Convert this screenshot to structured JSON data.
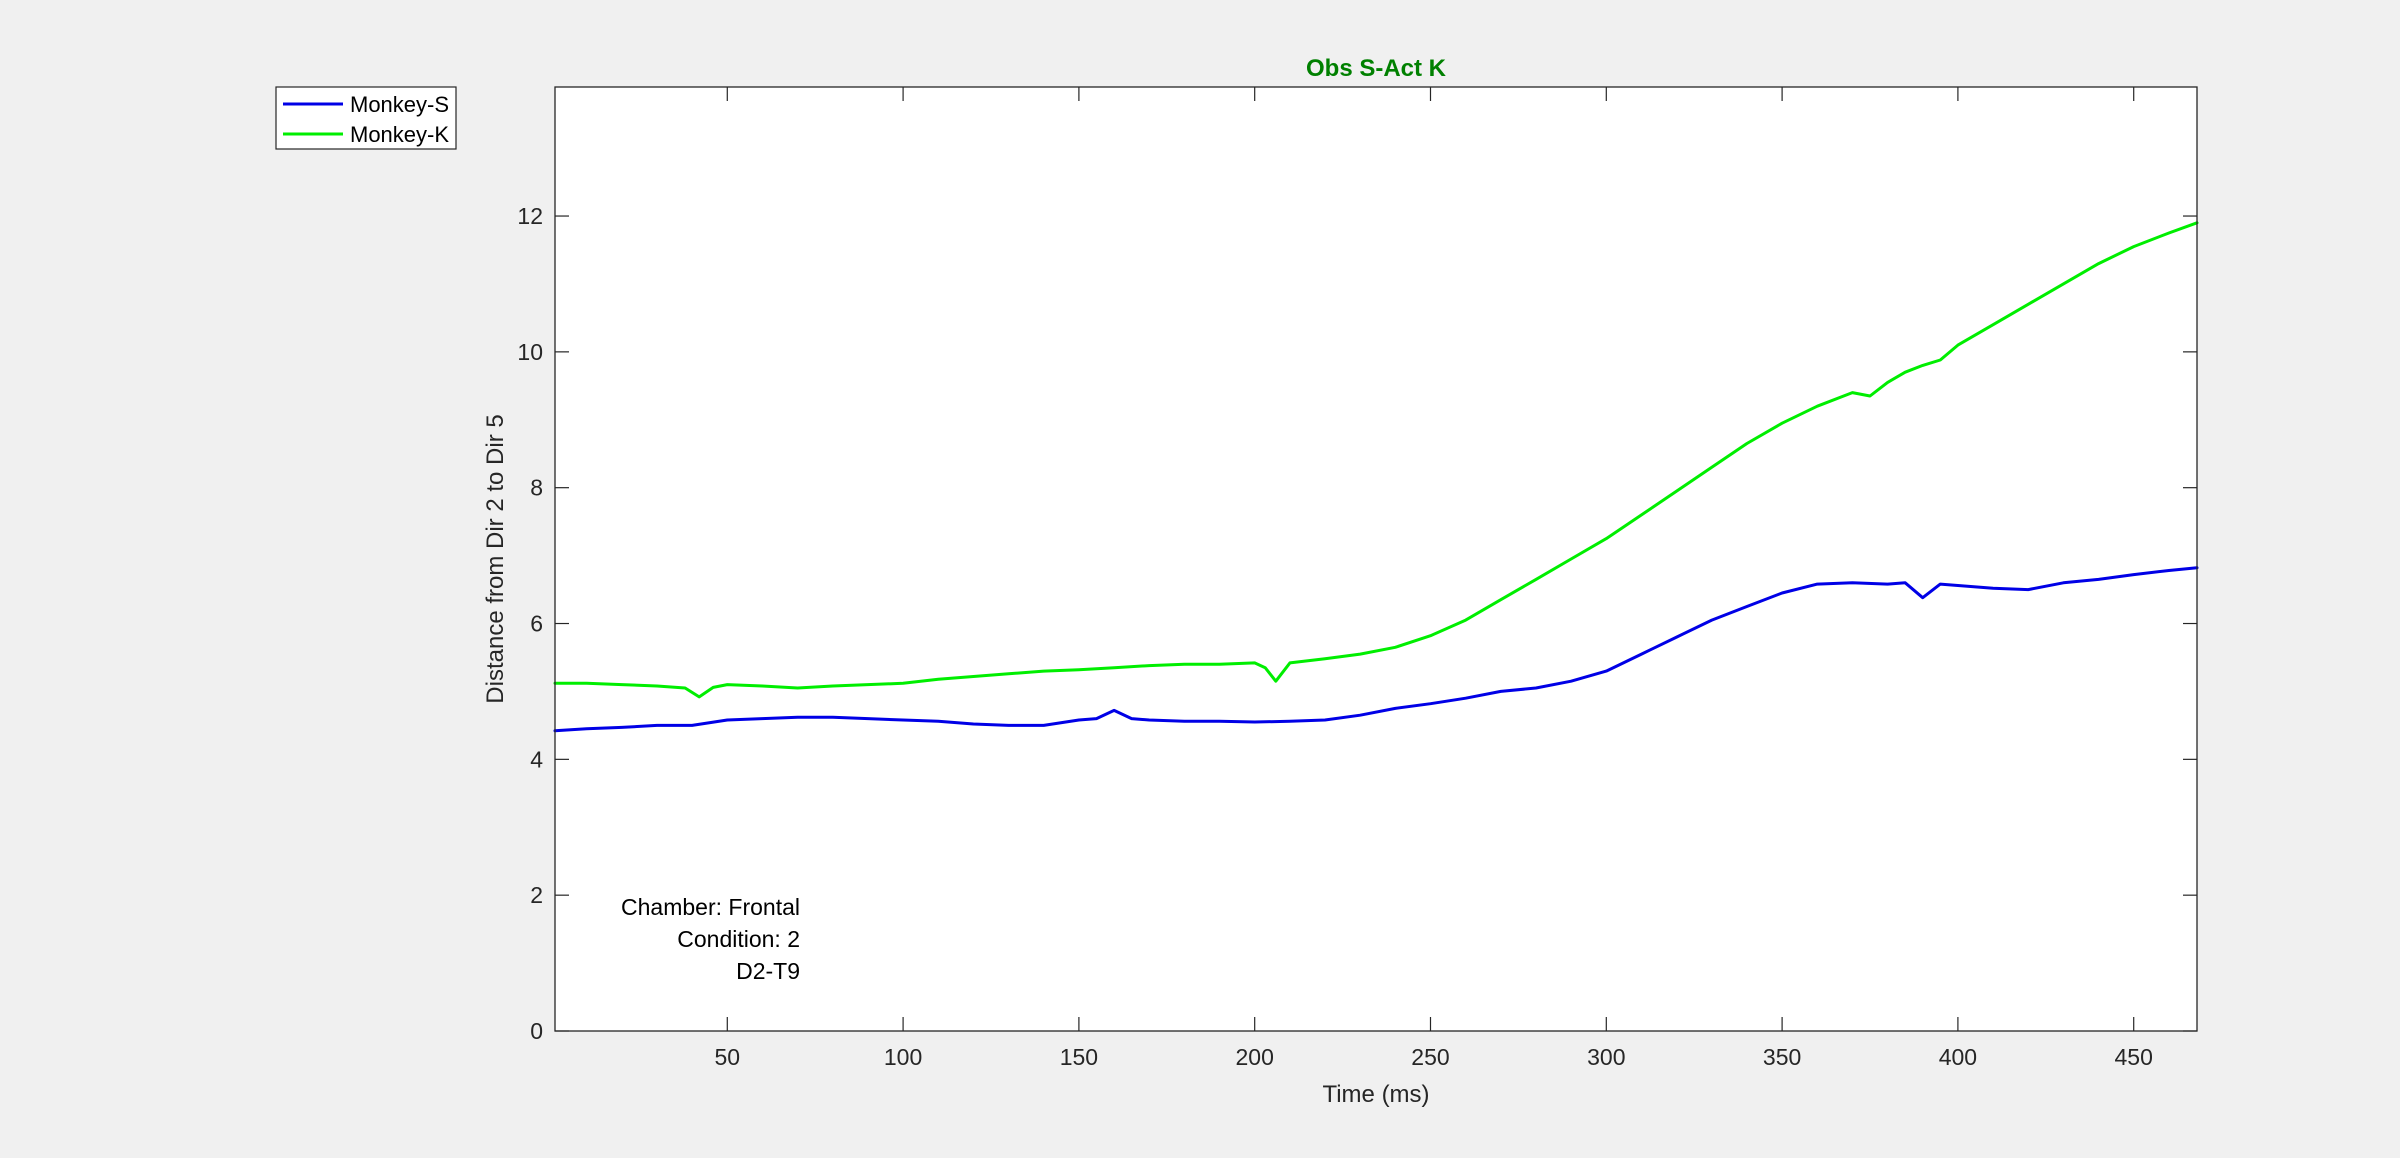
{
  "chart_data": {
    "type": "line",
    "title": "Obs S-Act K",
    "xlabel": "Time (ms)",
    "ylabel": "Distance from Dir 2 to Dir 5",
    "xlim": [
      1,
      468
    ],
    "ylim": [
      0,
      13.9
    ],
    "xticks": [
      50,
      100,
      150,
      200,
      250,
      300,
      350,
      400,
      450
    ],
    "yticks": [
      0,
      2,
      4,
      6,
      8,
      10,
      12
    ],
    "grid": false,
    "legend_position": "outside-top-left",
    "colors": {
      "title": "#008000",
      "figure_background": "#f0f0f0",
      "axes_background": "#ffffff"
    },
    "annotations": [
      "Chamber: Frontal",
      "Condition: 2",
      "D2-T9"
    ],
    "series": [
      {
        "name": "Monkey-S",
        "color": "#0000e6",
        "x": [
          1,
          10,
          20,
          30,
          40,
          50,
          60,
          70,
          80,
          90,
          100,
          110,
          120,
          130,
          140,
          150,
          155,
          160,
          165,
          170,
          180,
          190,
          200,
          210,
          220,
          230,
          240,
          250,
          260,
          270,
          280,
          290,
          300,
          310,
          320,
          330,
          340,
          350,
          360,
          370,
          380,
          385,
          390,
          395,
          400,
          410,
          420,
          430,
          440,
          450,
          460,
          468
        ],
        "y": [
          4.42,
          4.45,
          4.47,
          4.5,
          4.5,
          4.58,
          4.6,
          4.62,
          4.62,
          4.6,
          4.58,
          4.56,
          4.52,
          4.5,
          4.5,
          4.58,
          4.6,
          4.72,
          4.6,
          4.58,
          4.56,
          4.56,
          4.55,
          4.56,
          4.58,
          4.65,
          4.75,
          4.82,
          4.9,
          5.0,
          5.05,
          5.15,
          5.3,
          5.55,
          5.8,
          6.05,
          6.25,
          6.45,
          6.58,
          6.6,
          6.58,
          6.6,
          6.38,
          6.58,
          6.56,
          6.52,
          6.5,
          6.6,
          6.65,
          6.72,
          6.78,
          6.82
        ]
      },
      {
        "name": "Monkey-K",
        "color": "#00ee00",
        "x": [
          1,
          10,
          20,
          30,
          38,
          42,
          46,
          50,
          60,
          70,
          80,
          90,
          100,
          110,
          120,
          130,
          140,
          150,
          160,
          170,
          180,
          190,
          200,
          203,
          206,
          210,
          220,
          230,
          240,
          250,
          260,
          270,
          280,
          290,
          300,
          310,
          320,
          330,
          340,
          350,
          360,
          370,
          375,
          380,
          385,
          390,
          395,
          400,
          410,
          420,
          430,
          440,
          450,
          460,
          468
        ],
        "y": [
          5.12,
          5.12,
          5.1,
          5.08,
          5.05,
          4.92,
          5.06,
          5.1,
          5.08,
          5.05,
          5.08,
          5.1,
          5.12,
          5.18,
          5.22,
          5.26,
          5.3,
          5.32,
          5.35,
          5.38,
          5.4,
          5.4,
          5.42,
          5.35,
          5.15,
          5.42,
          5.48,
          5.55,
          5.65,
          5.82,
          6.05,
          6.35,
          6.65,
          6.95,
          7.25,
          7.6,
          7.95,
          8.3,
          8.65,
          8.95,
          9.2,
          9.4,
          9.35,
          9.55,
          9.7,
          9.8,
          9.88,
          10.1,
          10.4,
          10.7,
          11.0,
          11.3,
          11.55,
          11.75,
          11.9
        ]
      }
    ]
  }
}
